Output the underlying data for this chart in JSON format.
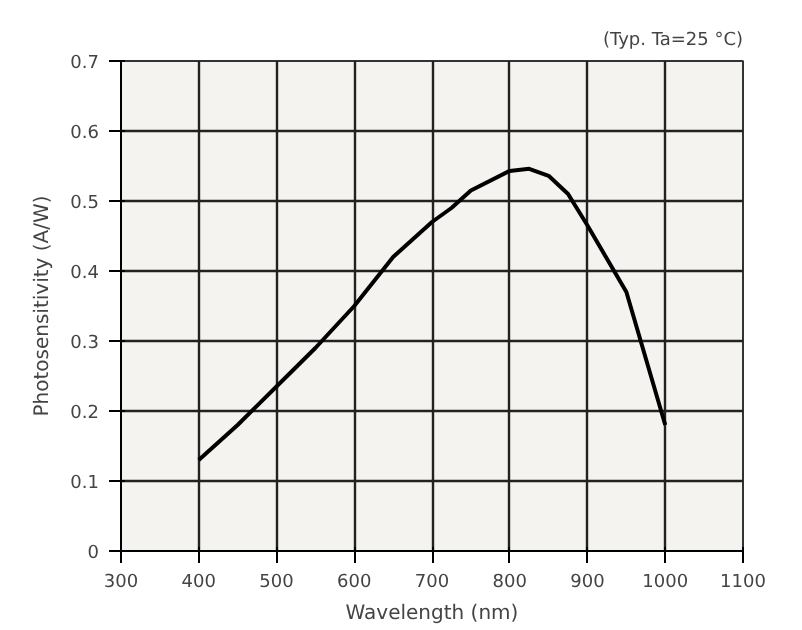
{
  "chart_data": {
    "type": "line",
    "xlabel": "Wavelength (nm)",
    "ylabel": "Photosensitivity (A/W)",
    "annotations": [
      "(Typ. Ta=25 °C)"
    ],
    "x": [
      400,
      450,
      500,
      550,
      600,
      650,
      700,
      725,
      750,
      800,
      825,
      850,
      875,
      900,
      950,
      1000
    ],
    "series": [
      {
        "color": "#000000",
        "values": [
          0.13,
          0.18,
          0.235,
          0.29,
          0.35,
          0.42,
          0.47,
          0.49,
          0.515,
          0.543,
          0.546,
          0.536,
          0.51,
          0.465,
          0.37,
          0.18
        ]
      }
    ],
    "xlim": [
      300,
      1100
    ],
    "xticks": [
      300,
      400,
      500,
      600,
      700,
      800,
      900,
      1000,
      1100
    ],
    "ylim": [
      0,
      0.7
    ],
    "yticks": [
      0,
      0.1,
      0.2,
      0.3,
      0.4,
      0.5,
      0.6,
      0.7
    ],
    "grid": true,
    "marker": "none",
    "line_style": "solid"
  }
}
